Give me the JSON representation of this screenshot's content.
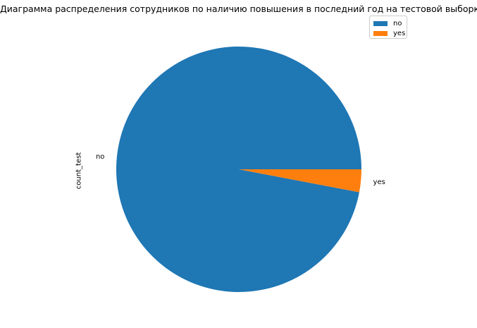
{
  "chart_data": {
    "type": "pie",
    "title": "Диаграмма распределения сотрудников по наличию повышения в последний год на тестовой выборке",
    "ylabel": "count_test",
    "categories": [
      "no",
      "yes"
    ],
    "values": [
      97,
      3
    ],
    "colors": [
      "#1f77b4",
      "#ff7f0e"
    ],
    "legend": {
      "placement": "top-right",
      "items": [
        "no",
        "yes"
      ]
    }
  }
}
